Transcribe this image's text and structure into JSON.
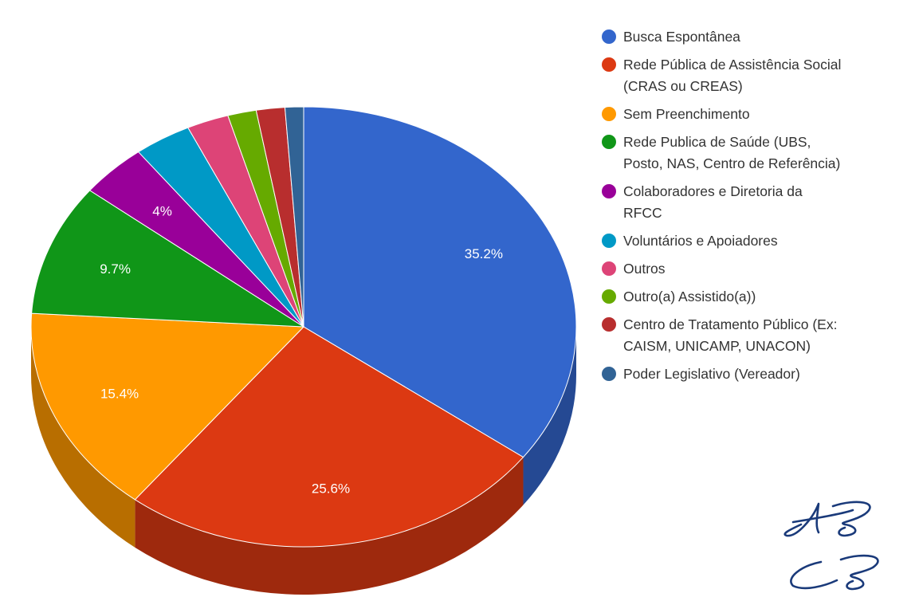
{
  "chart_data": {
    "type": "pie",
    "title": "",
    "three_d": true,
    "legend_position": "right",
    "slices": [
      {
        "label": "Busca Espontânea",
        "value": 35.2,
        "display": "35.2%",
        "color": "#3366cc"
      },
      {
        "label": "Rede Pública de Assistência Social\n(CRAS ou CREAS)",
        "value": 25.6,
        "display": "25.6%",
        "color": "#dc3912"
      },
      {
        "label": "Sem Preenchimento",
        "value": 15.4,
        "display": "15.4%",
        "color": "#ff9900"
      },
      {
        "label": "Rede Publica de Saúde (UBS,\nPosto, NAS, Centro de Referência)",
        "value": 9.7,
        "display": "9.7%",
        "color": "#109618"
      },
      {
        "label": "Colaboradores e Diretoria da\nRFCC",
        "value": 4.0,
        "display": "4%",
        "color": "#990099"
      },
      {
        "label": "Voluntários e Apoiadores",
        "value": 3.4,
        "display": "",
        "color": "#0099c6"
      },
      {
        "label": "Outros",
        "value": 2.5,
        "display": "",
        "color": "#dd4477"
      },
      {
        "label": "Outro(a) Assistido(a))",
        "value": 1.7,
        "display": "",
        "color": "#66aa00"
      },
      {
        "label": "Centro de Tratamento Público (Ex:\nCAISM, UNICAMP, UNACON)",
        "value": 1.7,
        "display": "",
        "color": "#b82e2e"
      },
      {
        "label": "Poder Legislativo (Vereador)",
        "value": 1.1,
        "display": "",
        "color": "#316395"
      }
    ]
  },
  "signature": {
    "initials_top": "AB",
    "initials_bottom": "CB",
    "color": "#1a3a7a"
  }
}
